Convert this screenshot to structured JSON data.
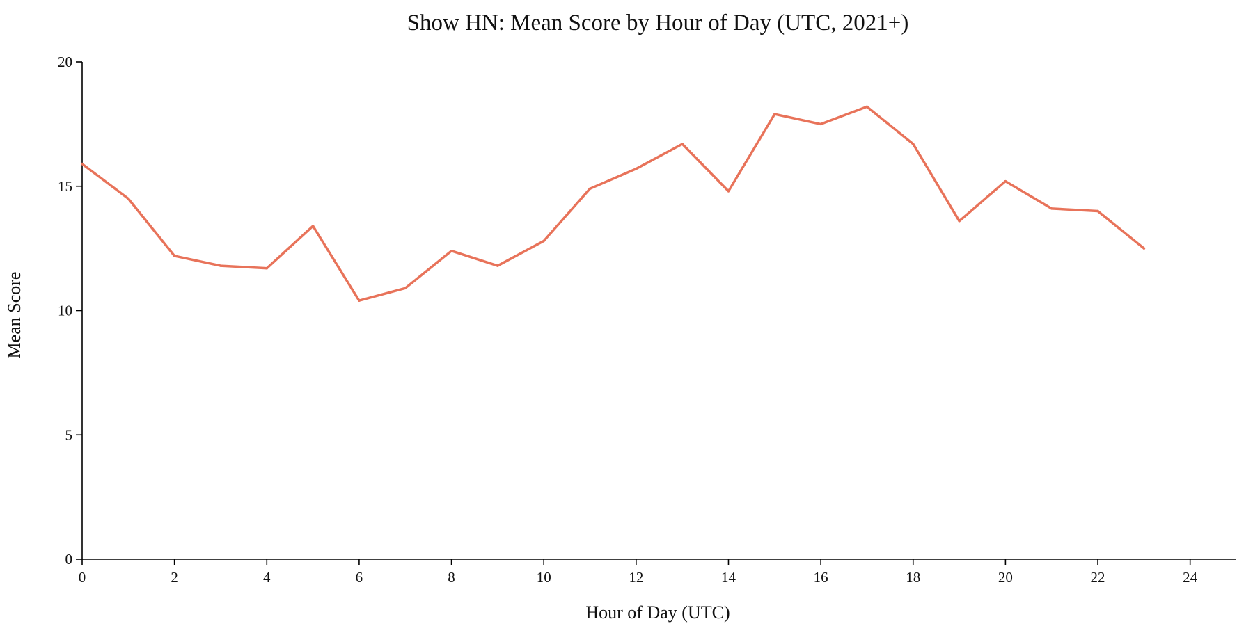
{
  "chart_data": {
    "type": "line",
    "title": "Show HN: Mean Score by Hour of Day (UTC, 2021+)",
    "xlabel": "Hour of Day (UTC)",
    "ylabel": "Mean Score",
    "xlim": [
      0,
      25
    ],
    "ylim": [
      0,
      20
    ],
    "x_ticks": [
      0,
      2,
      4,
      6,
      8,
      10,
      12,
      14,
      16,
      18,
      20,
      22,
      24
    ],
    "y_ticks": [
      0,
      5,
      10,
      15,
      20
    ],
    "grid": false,
    "legend": "none",
    "color": "#e8735a",
    "series": [
      {
        "x": [
          0,
          1,
          2,
          3,
          4,
          5,
          6,
          7,
          8,
          9,
          10,
          11,
          12,
          13,
          14,
          15,
          16,
          17,
          18,
          19,
          20,
          21,
          22,
          23
        ],
        "values": [
          15.9,
          14.5,
          12.2,
          11.8,
          11.7,
          13.4,
          10.4,
          10.9,
          12.4,
          11.8,
          12.8,
          14.9,
          15.7,
          16.7,
          14.8,
          17.9,
          17.5,
          18.2,
          16.7,
          13.6,
          15.2,
          14.1,
          14.0,
          12.5
        ]
      }
    ]
  }
}
